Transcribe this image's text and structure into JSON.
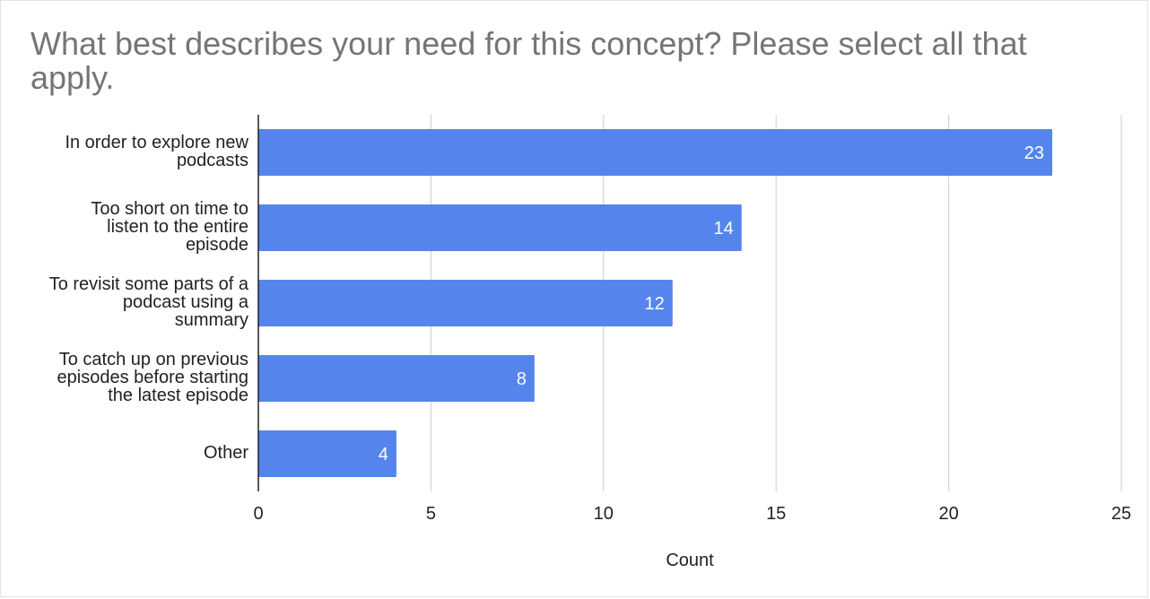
{
  "chart_data": {
    "type": "bar",
    "orientation": "horizontal",
    "title": "What best describes your need for this concept? Please select all that apply.",
    "categories": [
      [
        "In order to explore new",
        "podcasts"
      ],
      [
        "Too short on time to",
        "listen to the entire",
        "episode"
      ],
      [
        "To revisit some parts of a",
        "podcast using a",
        "summary"
      ],
      [
        "To catch up on previous",
        "episodes before starting",
        "the latest episode"
      ],
      [
        "Other"
      ]
    ],
    "values": [
      23,
      14,
      12,
      8,
      4
    ],
    "data_labels": [
      "23",
      "14",
      "12",
      "8",
      "4"
    ],
    "xlabel": "Count",
    "xlim": [
      0,
      25
    ],
    "xticks": [
      0,
      5,
      10,
      15,
      20,
      25
    ],
    "grid": true,
    "legend": "none",
    "bar_color": "#5585ec",
    "grid_color": "#cccccc",
    "axis_color": "#222222"
  }
}
